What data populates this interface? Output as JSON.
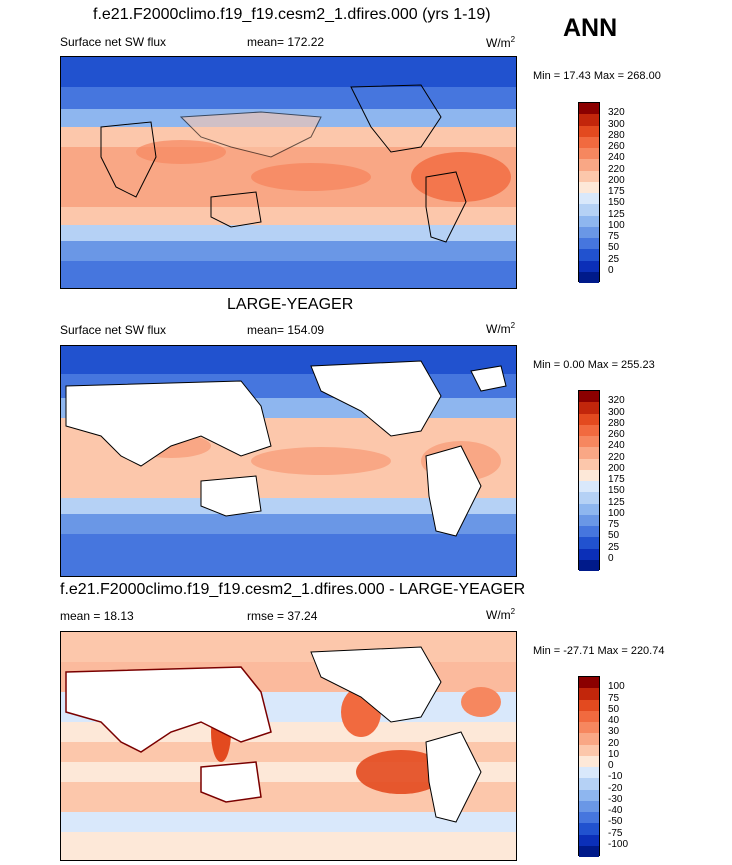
{
  "main_title": "ANN",
  "panels": [
    {
      "title": "f.e21.F2000climo.f19_f19.cesm2_1.dfires.000 (yrs 1-19)",
      "left_label": "Surface net SW flux",
      "center_label": "mean= 172.22",
      "units_base": "W/m",
      "units_sup": "2",
      "minmax": "Min =  17.43 Max = 268.00",
      "levels": [
        "320",
        "300",
        "280",
        "260",
        "240",
        "220",
        "200",
        "175",
        "150",
        "125",
        "100",
        "75",
        "50",
        "25",
        "0"
      ],
      "colors": [
        "#8b0000",
        "#c2260b",
        "#e34a1f",
        "#f16a3f",
        "#f6875f",
        "#f9a785",
        "#fcc7ab",
        "#fde8d8",
        "#d9e8fb",
        "#b5d1f5",
        "#8eb6ef",
        "#6a97e6",
        "#4676de",
        "#2152cf",
        "#0b2fb8",
        "#001a8a"
      ]
    },
    {
      "title": "LARGE-YEAGER",
      "left_label": "Surface net SW flux",
      "center_label": "mean= 154.09",
      "units_base": "W/m",
      "units_sup": "2",
      "minmax": "Min =   0.00 Max = 255.23",
      "levels": [
        "320",
        "300",
        "280",
        "260",
        "240",
        "220",
        "200",
        "175",
        "150",
        "125",
        "100",
        "75",
        "50",
        "25",
        "0"
      ],
      "colors": [
        "#8b0000",
        "#c2260b",
        "#e34a1f",
        "#f16a3f",
        "#f6875f",
        "#f9a785",
        "#fcc7ab",
        "#fde8d8",
        "#d9e8fb",
        "#b5d1f5",
        "#8eb6ef",
        "#6a97e6",
        "#4676de",
        "#2152cf",
        "#0b2fb8",
        "#001a8a"
      ]
    },
    {
      "title": "f.e21.F2000climo.f19_f19.cesm2_1.dfires.000 - LARGE-YEAGER",
      "left_label": "mean =  18.13",
      "center_label": "rmse =  37.24",
      "units_base": "W/m",
      "units_sup": "2",
      "minmax": "Min = -27.71 Max = 220.74",
      "levels": [
        "100",
        "75",
        "50",
        "40",
        "30",
        "20",
        "10",
        "0",
        "-10",
        "-20",
        "-30",
        "-40",
        "-50",
        "-75",
        "-100"
      ],
      "colors": [
        "#8b0000",
        "#c2260b",
        "#e34a1f",
        "#f16a3f",
        "#f6875f",
        "#f9a785",
        "#fcc7ab",
        "#fde8d8",
        "#d9e8fb",
        "#b5d1f5",
        "#8eb6ef",
        "#6a97e6",
        "#4676de",
        "#2152cf",
        "#0b2fb8",
        "#001a8a"
      ]
    }
  ],
  "chart_data": {
    "type": "heatmap",
    "title": "ANN",
    "series": [
      {
        "name": "f.e21.F2000climo.f19_f19.cesm2_1.dfires.000 (yrs 1-19)",
        "variable": "Surface net SW flux",
        "mean": 172.22,
        "min": 17.43,
        "max": 268.0,
        "units": "W/m2"
      },
      {
        "name": "LARGE-YEAGER",
        "variable": "Surface net SW flux",
        "mean": 154.09,
        "min": 0.0,
        "max": 255.23,
        "units": "W/m2"
      },
      {
        "name": "f.e21.F2000climo.f19_f19.cesm2_1.dfires.000 - LARGE-YEAGER",
        "mean": 18.13,
        "rmse": 37.24,
        "min": -27.71,
        "max": 220.74,
        "units": "W/m2"
      }
    ],
    "colorbar_levels_abs": [
      0,
      25,
      50,
      75,
      100,
      125,
      150,
      175,
      200,
      220,
      240,
      260,
      280,
      300,
      320
    ],
    "colorbar_levels_diff": [
      -100,
      -75,
      -50,
      -40,
      -30,
      -20,
      -10,
      0,
      10,
      20,
      30,
      40,
      50,
      75,
      100
    ],
    "legend_position": "right"
  }
}
